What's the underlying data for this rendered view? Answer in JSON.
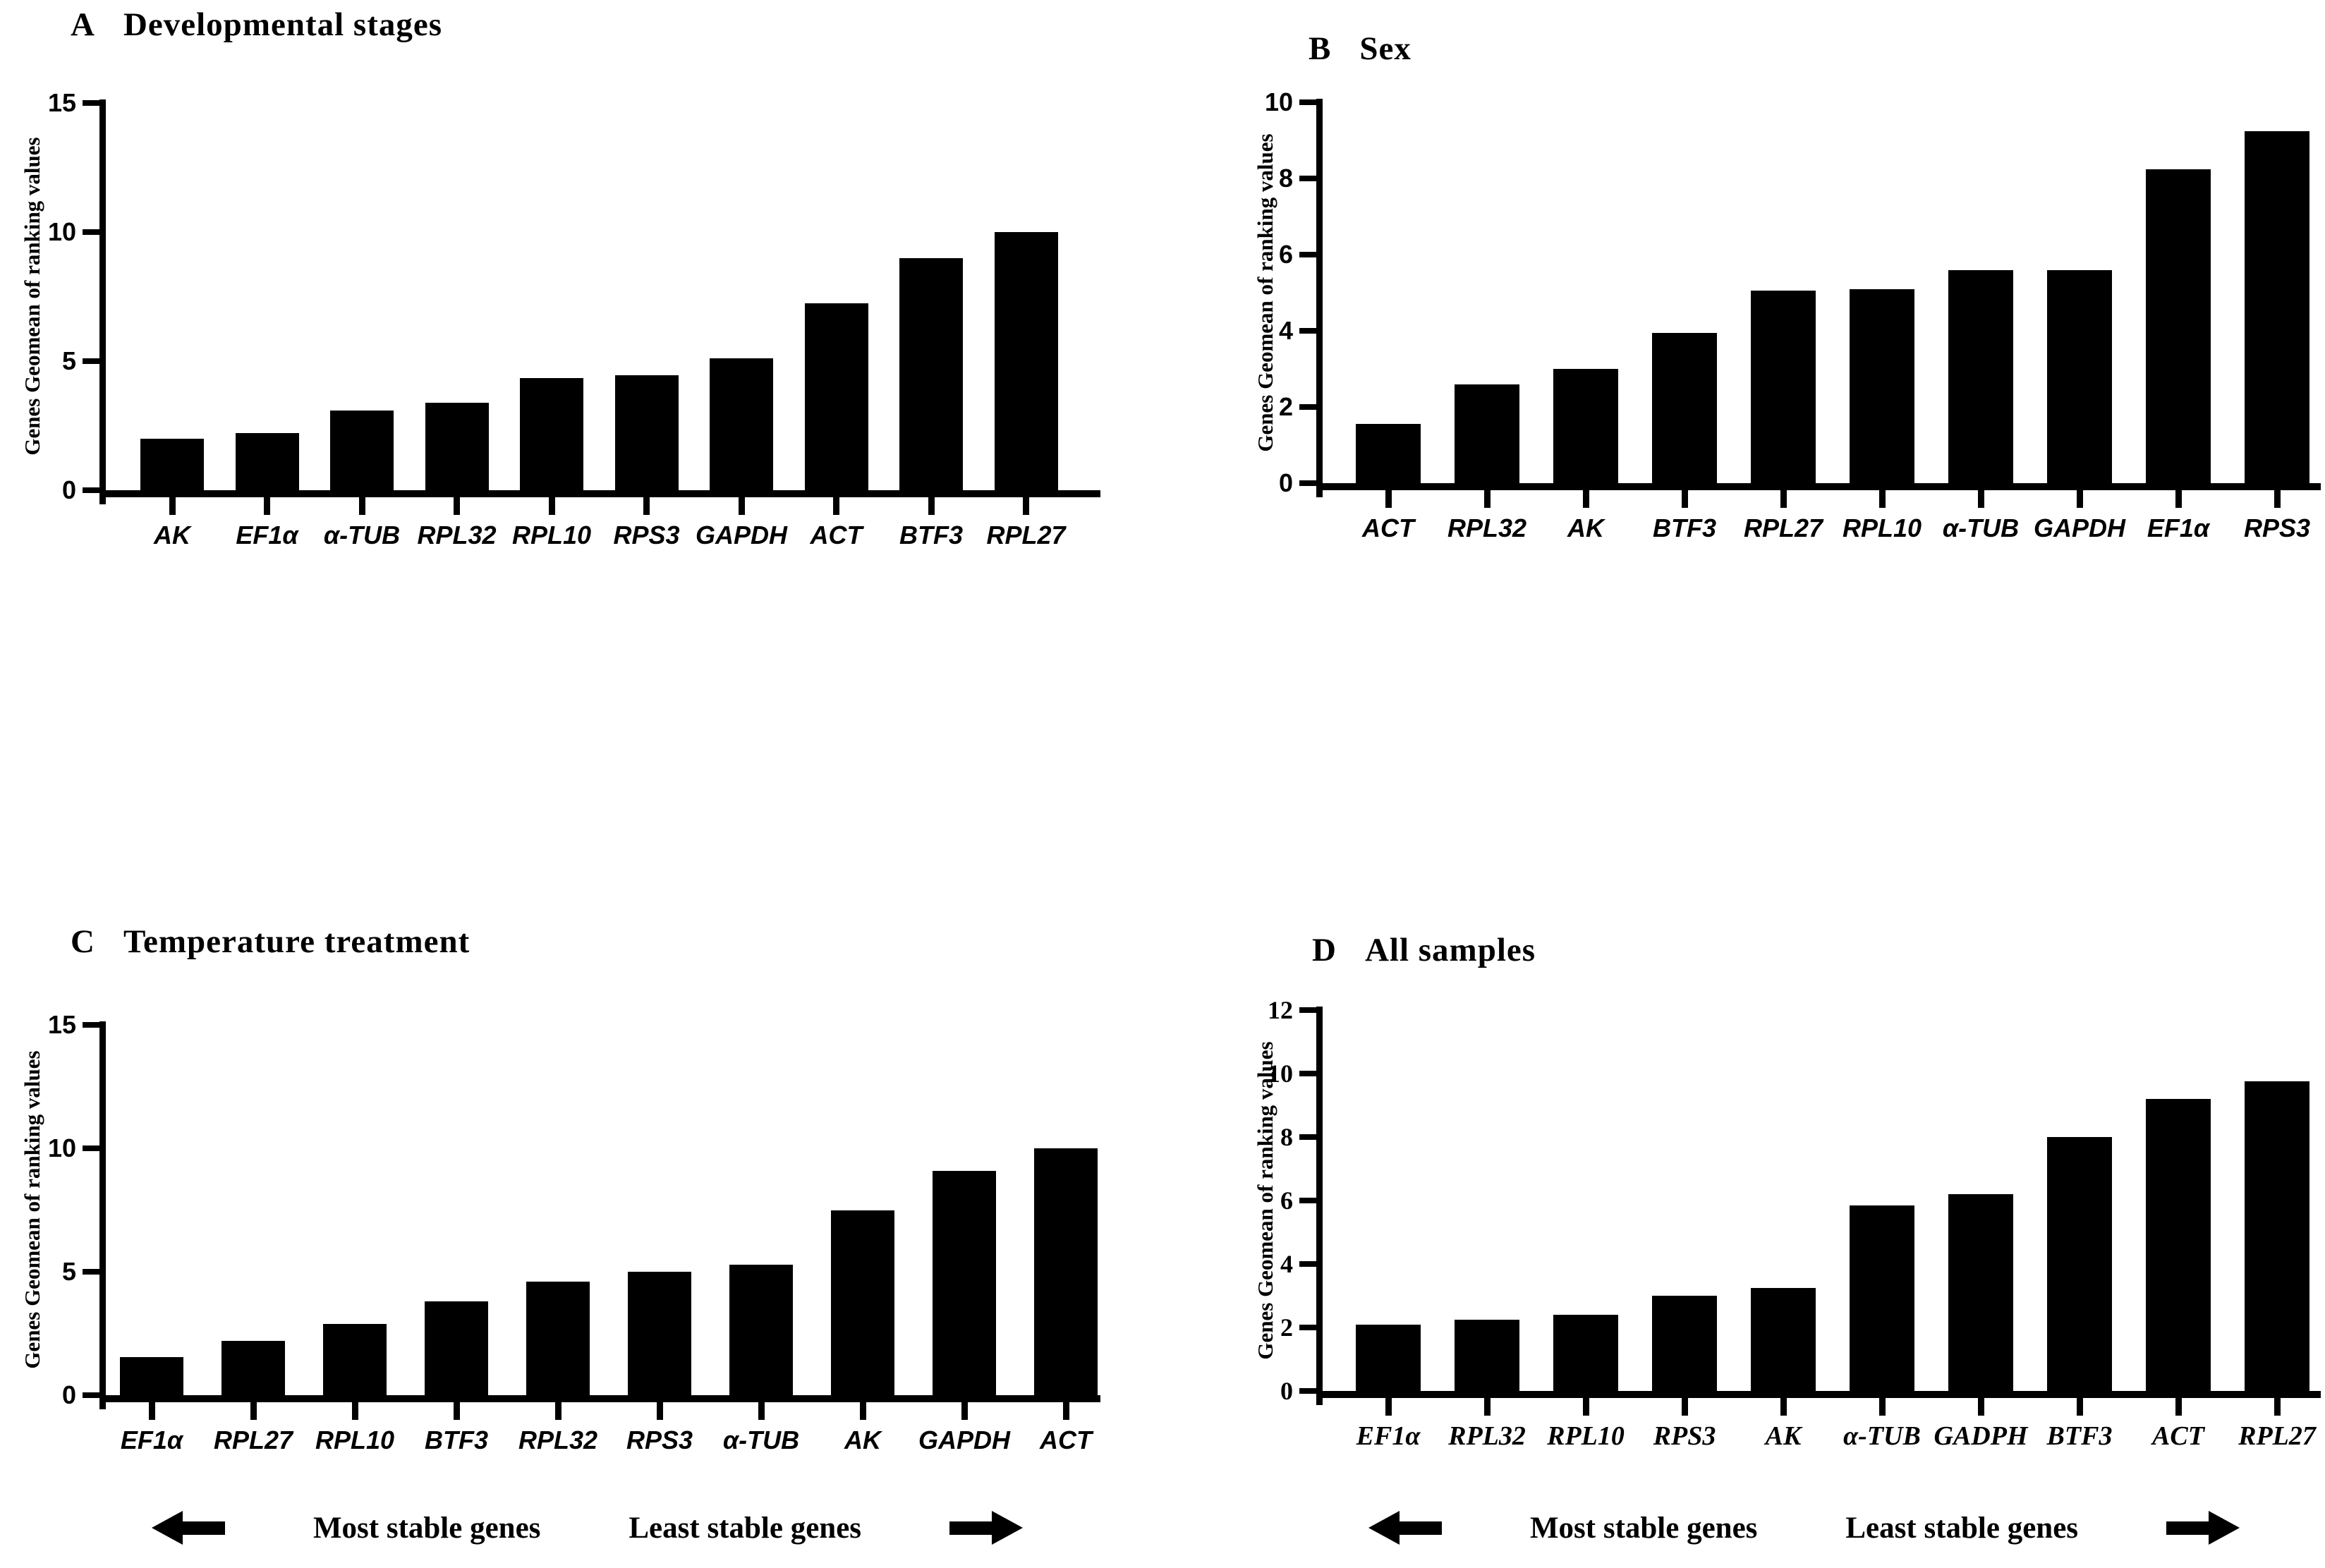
{
  "chart_data": [
    {
      "type": "bar",
      "panel_letter": "A",
      "title": "Developmental stages",
      "ylabel": "Genes Geomean of ranking values",
      "categories": [
        "AK",
        "EF1α",
        "α-TUB",
        "RPL32",
        "RPL10",
        "RPS3",
        "GAPDH",
        "ACT",
        "BTF3",
        "RPL27"
      ],
      "values": [
        2.0,
        2.2,
        3.1,
        3.4,
        4.35,
        4.45,
        5.1,
        7.25,
        9.0,
        10.0
      ],
      "ylim": [
        0,
        15
      ],
      "yticks": [
        0,
        5,
        10,
        15
      ],
      "grid": false,
      "legend": "none"
    },
    {
      "type": "bar",
      "panel_letter": "B",
      "title": "Sex",
      "ylabel": "Genes Geomean of ranking values",
      "categories": [
        "ACT",
        "RPL32",
        "AK",
        "BTF3",
        "RPL27",
        "RPL10",
        "α-TUB",
        "GAPDH",
        "EF1α",
        "RPS3"
      ],
      "values": [
        1.55,
        2.6,
        3.0,
        3.95,
        5.05,
        5.1,
        5.6,
        5.6,
        8.25,
        9.25
      ],
      "ylim": [
        0,
        10
      ],
      "yticks": [
        0,
        2,
        4,
        6,
        8,
        10
      ],
      "grid": false,
      "legend": "none"
    },
    {
      "type": "bar",
      "panel_letter": "C",
      "title": "Temperature treatment",
      "ylabel": "Genes Geomean of ranking values",
      "categories": [
        "EF1α",
        "RPL27",
        "RPL10",
        "BTF3",
        "RPL32",
        "RPS3",
        "α-TUB",
        "AK",
        "GAPDH",
        "ACT"
      ],
      "values": [
        1.55,
        2.2,
        2.9,
        3.8,
        4.6,
        5.0,
        5.3,
        7.5,
        9.1,
        10.0
      ],
      "ylim": [
        0,
        15
      ],
      "yticks": [
        0,
        5,
        10,
        15
      ],
      "grid": false,
      "legend": "none"
    },
    {
      "type": "bar",
      "panel_letter": "D",
      "title": "All samples",
      "ylabel": "Genes Geomean of ranking values",
      "categories": [
        "EF1α",
        "RPL32",
        "RPL10",
        "RPS3",
        "AK",
        "α-TUB",
        "GADPH",
        "BTF3",
        "ACT",
        "RPL27"
      ],
      "values": [
        2.1,
        2.25,
        2.4,
        3.0,
        3.25,
        5.85,
        6.2,
        8.0,
        9.2,
        9.75
      ],
      "ylim": [
        0,
        12
      ],
      "yticks": [
        0,
        2,
        4,
        6,
        8,
        10,
        12
      ],
      "grid": false,
      "legend": "none"
    }
  ],
  "annotations": {
    "most_stable": "Most stable genes",
    "least_stable": "Least stable genes"
  },
  "colors": {
    "bar": "#000000",
    "background": "#ffffff",
    "text": "#000000"
  }
}
